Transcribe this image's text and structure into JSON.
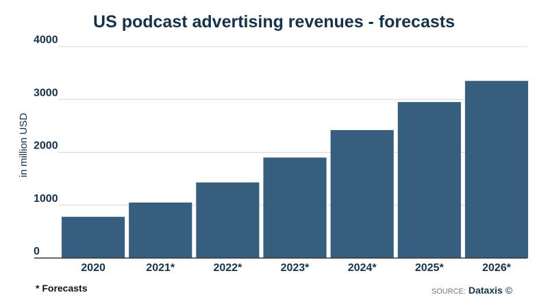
{
  "chart_data": {
    "type": "bar",
    "title": "US podcast advertising revenues - forecasts",
    "ylabel": "in million USD",
    "xlabel": "",
    "categories": [
      "2020",
      "2021*",
      "2022*",
      "2023*",
      "2024*",
      "2025*",
      "2026*"
    ],
    "values": [
      780,
      1050,
      1430,
      1900,
      2420,
      2950,
      3350
    ],
    "ylim": [
      0,
      4000
    ],
    "yticks": [
      0,
      1000,
      2000,
      3000,
      4000
    ],
    "grid": true,
    "bar_color": "#365e7e"
  },
  "footnote": "* Forecasts",
  "source": {
    "label": "SOURCE:",
    "brand": "Dataxis",
    "copyright": "©"
  }
}
